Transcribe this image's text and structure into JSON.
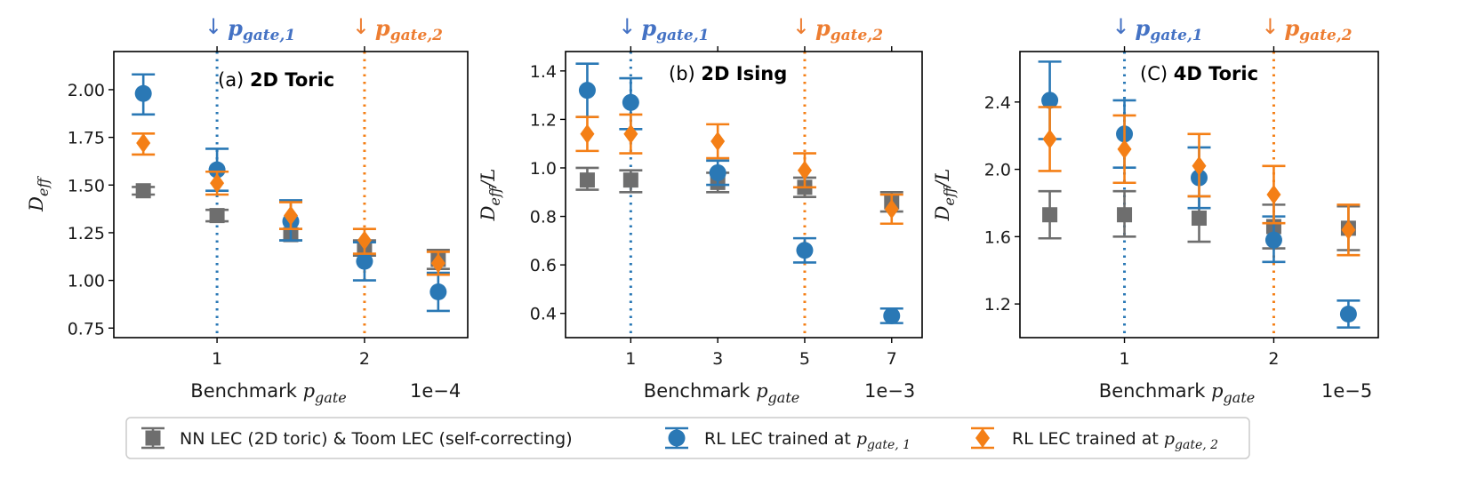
{
  "colors": {
    "gray": "#6e6e6e",
    "blue": "#2a78b5",
    "orange": "#f47f16",
    "blue_text": "#4472c4",
    "orange_text": "#ed7d31"
  },
  "markers": {
    "down_arrow": "↓",
    "gate1_main": "p",
    "gate1_sub": "gate,1",
    "gate2_main": "p",
    "gate2_sub": "gate,2"
  },
  "legend": {
    "items": [
      {
        "name": "gray",
        "label": "NN LEC (2D toric) & Toom LEC (self-correcting)"
      },
      {
        "name": "blue",
        "label_prefix": "RL LEC trained at ",
        "label_var": "p",
        "label_sub": "gate, 1"
      },
      {
        "name": "orange",
        "label_prefix": "RL LEC trained at ",
        "label_var": "p",
        "label_sub": "gate, 2"
      }
    ]
  },
  "chart_data": [
    {
      "type": "scatter",
      "title_prefix": "(a) ",
      "title_bold": "2D Toric",
      "ylabel_main": "D",
      "ylabel_sub": "eff",
      "ylabel_suffix": "",
      "xlabel_main": "Benchmark ",
      "xlabel_var": "p",
      "xlabel_sub": "gate",
      "x_exponent": "1e−4",
      "xlim": [
        0.3,
        2.7
      ],
      "ylim": [
        0.7,
        2.2
      ],
      "xticks": [
        1,
        2
      ],
      "xtick_labels": [
        "1",
        "2"
      ],
      "yticks": [
        0.75,
        1.0,
        1.25,
        1.5,
        1.75,
        2.0
      ],
      "ytick_labels": [
        "0.75",
        "1.00",
        "1.25",
        "1.50",
        "1.75",
        "2.00"
      ],
      "gate1_x": 1,
      "gate2_x": 2,
      "series": [
        {
          "name": "gray",
          "points": [
            {
              "x": 0.5,
              "y": 1.47,
              "lo": 1.45,
              "hi": 1.49
            },
            {
              "x": 1.0,
              "y": 1.34,
              "lo": 1.31,
              "hi": 1.37
            },
            {
              "x": 1.5,
              "y": 1.24,
              "lo": 1.21,
              "hi": 1.27
            },
            {
              "x": 2.0,
              "y": 1.17,
              "lo": 1.13,
              "hi": 1.21
            },
            {
              "x": 2.5,
              "y": 1.11,
              "lo": 1.06,
              "hi": 1.16
            }
          ]
        },
        {
          "name": "blue",
          "points": [
            {
              "x": 0.5,
              "y": 1.98,
              "lo": 1.87,
              "hi": 2.08
            },
            {
              "x": 1.0,
              "y": 1.58,
              "lo": 1.47,
              "hi": 1.69
            },
            {
              "x": 1.5,
              "y": 1.31,
              "lo": 1.21,
              "hi": 1.42
            },
            {
              "x": 2.0,
              "y": 1.1,
              "lo": 1.0,
              "hi": 1.2
            },
            {
              "x": 2.5,
              "y": 0.94,
              "lo": 0.84,
              "hi": 1.04
            }
          ]
        },
        {
          "name": "orange",
          "points": [
            {
              "x": 0.5,
              "y": 1.72,
              "lo": 1.66,
              "hi": 1.77
            },
            {
              "x": 1.0,
              "y": 1.51,
              "lo": 1.45,
              "hi": 1.57
            },
            {
              "x": 1.5,
              "y": 1.34,
              "lo": 1.27,
              "hi": 1.41
            },
            {
              "x": 2.0,
              "y": 1.21,
              "lo": 1.14,
              "hi": 1.27
            },
            {
              "x": 2.5,
              "y": 1.09,
              "lo": 1.03,
              "hi": 1.15
            }
          ]
        }
      ]
    },
    {
      "type": "scatter",
      "title_prefix": "(b) ",
      "title_bold": "2D Ising",
      "ylabel_main": "D",
      "ylabel_sub": "eff",
      "ylabel_suffix": "/L",
      "xlabel_main": "Benchmark ",
      "xlabel_var": "p",
      "xlabel_sub": "gate",
      "x_exponent": "1e−3",
      "xlim": [
        -0.5,
        7.7
      ],
      "ylim": [
        0.3,
        1.48
      ],
      "xticks": [
        1,
        3,
        5,
        7
      ],
      "xtick_labels": [
        "1",
        "3",
        "5",
        "7"
      ],
      "yticks": [
        0.4,
        0.6,
        0.8,
        1.0,
        1.2,
        1.4
      ],
      "ytick_labels": [
        "0.4",
        "0.6",
        "0.8",
        "1.0",
        "1.2",
        "1.4"
      ],
      "gate1_x": 1,
      "gate2_x": 5,
      "series": [
        {
          "name": "gray",
          "points": [
            {
              "x": 0.0,
              "y": 0.95,
              "lo": 0.91,
              "hi": 1.0
            },
            {
              "x": 1.0,
              "y": 0.95,
              "lo": 0.9,
              "hi": 0.99
            },
            {
              "x": 3.0,
              "y": 0.94,
              "lo": 0.9,
              "hi": 0.98
            },
            {
              "x": 5.0,
              "y": 0.92,
              "lo": 0.88,
              "hi": 0.96
            },
            {
              "x": 7.0,
              "y": 0.86,
              "lo": 0.82,
              "hi": 0.9
            }
          ]
        },
        {
          "name": "blue",
          "points": [
            {
              "x": 0.0,
              "y": 1.32,
              "lo": 1.21,
              "hi": 1.43
            },
            {
              "x": 1.0,
              "y": 1.27,
              "lo": 1.16,
              "hi": 1.37
            },
            {
              "x": 3.0,
              "y": 0.98,
              "lo": 0.93,
              "hi": 1.03
            },
            {
              "x": 5.0,
              "y": 0.66,
              "lo": 0.61,
              "hi": 0.71
            },
            {
              "x": 7.0,
              "y": 0.39,
              "lo": 0.36,
              "hi": 0.42
            }
          ]
        },
        {
          "name": "orange",
          "points": [
            {
              "x": 0.0,
              "y": 1.14,
              "lo": 1.07,
              "hi": 1.21
            },
            {
              "x": 1.0,
              "y": 1.14,
              "lo": 1.06,
              "hi": 1.22
            },
            {
              "x": 3.0,
              "y": 1.11,
              "lo": 1.04,
              "hi": 1.18
            },
            {
              "x": 5.0,
              "y": 0.99,
              "lo": 0.92,
              "hi": 1.06
            },
            {
              "x": 7.0,
              "y": 0.83,
              "lo": 0.77,
              "hi": 0.89
            }
          ]
        }
      ]
    },
    {
      "type": "scatter",
      "title_prefix": "(C) ",
      "title_bold": "4D Toric",
      "ylabel_main": "D",
      "ylabel_sub": "eff",
      "ylabel_suffix": "/L",
      "xlabel_main": "Benchmark ",
      "xlabel_var": "p",
      "xlabel_sub": "gate",
      "x_exponent": "1e−5",
      "xlim": [
        0.3,
        2.7
      ],
      "ylim": [
        1.0,
        2.7
      ],
      "xticks": [
        1,
        2
      ],
      "xtick_labels": [
        "1",
        "2"
      ],
      "yticks": [
        1.2,
        1.6,
        2.0,
        2.4
      ],
      "ytick_labels": [
        "1.2",
        "1.6",
        "2.0",
        "2.4"
      ],
      "gate1_x": 1,
      "gate2_x": 2,
      "series": [
        {
          "name": "gray",
          "points": [
            {
              "x": 0.5,
              "y": 1.73,
              "lo": 1.59,
              "hi": 1.87
            },
            {
              "x": 1.0,
              "y": 1.73,
              "lo": 1.6,
              "hi": 1.87
            },
            {
              "x": 1.5,
              "y": 1.71,
              "lo": 1.57,
              "hi": 1.84
            },
            {
              "x": 2.0,
              "y": 1.66,
              "lo": 1.53,
              "hi": 1.79
            },
            {
              "x": 2.5,
              "y": 1.65,
              "lo": 1.52,
              "hi": 1.78
            }
          ]
        },
        {
          "name": "blue",
          "points": [
            {
              "x": 0.5,
              "y": 2.41,
              "lo": 2.18,
              "hi": 2.64
            },
            {
              "x": 1.0,
              "y": 2.21,
              "lo": 2.01,
              "hi": 2.41
            },
            {
              "x": 1.5,
              "y": 1.95,
              "lo": 1.77,
              "hi": 2.13
            },
            {
              "x": 2.0,
              "y": 1.58,
              "lo": 1.45,
              "hi": 1.72
            },
            {
              "x": 2.5,
              "y": 1.14,
              "lo": 1.06,
              "hi": 1.22
            }
          ]
        },
        {
          "name": "orange",
          "points": [
            {
              "x": 0.5,
              "y": 2.18,
              "lo": 1.99,
              "hi": 2.37
            },
            {
              "x": 1.0,
              "y": 2.12,
              "lo": 1.92,
              "hi": 2.32
            },
            {
              "x": 1.5,
              "y": 2.02,
              "lo": 1.84,
              "hi": 2.21
            },
            {
              "x": 2.0,
              "y": 1.85,
              "lo": 1.68,
              "hi": 2.02
            },
            {
              "x": 2.5,
              "y": 1.64,
              "lo": 1.49,
              "hi": 1.79
            }
          ]
        }
      ]
    }
  ]
}
